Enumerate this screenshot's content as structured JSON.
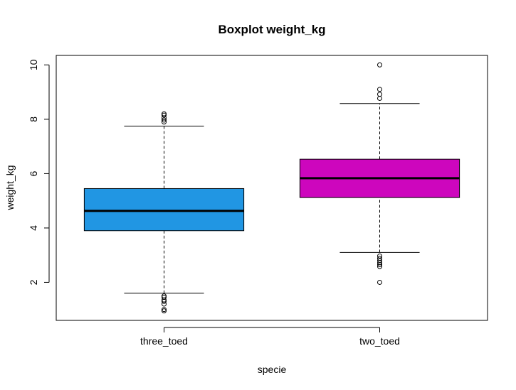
{
  "chart_data": {
    "type": "boxplot",
    "title": "Boxplot weight_kg",
    "xlabel": "specie",
    "ylabel": "weight_kg",
    "ylim": [
      0.6,
      10.35
    ],
    "yticks": [
      2,
      4,
      6,
      8,
      10
    ],
    "grid": false,
    "legend": "none",
    "categories": [
      "three_toed",
      "two_toed"
    ],
    "series": [
      {
        "category": "three_toed",
        "color": "#2196E3",
        "whisker_low": 1.6,
        "q1": 3.9,
        "median": 4.63,
        "q3": 5.45,
        "whisker_high": 7.75,
        "outliers": [
          0.95,
          1.0,
          1.2,
          1.3,
          1.35,
          1.45,
          1.5,
          7.9,
          7.97,
          8.05,
          8.15,
          8.2
        ]
      },
      {
        "category": "two_toed",
        "color": "#CD06BD",
        "whisker_low": 3.1,
        "q1": 5.12,
        "median": 5.83,
        "q3": 6.53,
        "whisker_high": 8.58,
        "outliers": [
          2.0,
          2.58,
          2.65,
          2.72,
          2.8,
          2.88,
          2.97,
          8.77,
          8.92,
          9.1,
          10.0
        ]
      }
    ]
  }
}
